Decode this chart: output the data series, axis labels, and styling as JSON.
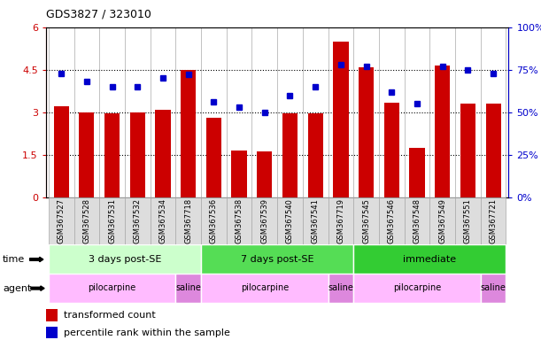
{
  "title": "GDS3827 / 323010",
  "samples": [
    "GSM367527",
    "GSM367528",
    "GSM367531",
    "GSM367532",
    "GSM367534",
    "GSM367718",
    "GSM367536",
    "GSM367538",
    "GSM367539",
    "GSM367540",
    "GSM367541",
    "GSM367719",
    "GSM367545",
    "GSM367546",
    "GSM367548",
    "GSM367549",
    "GSM367551",
    "GSM367721"
  ],
  "bar_values": [
    3.2,
    3.0,
    2.95,
    3.0,
    3.1,
    4.5,
    2.8,
    1.65,
    1.62,
    2.95,
    2.95,
    5.5,
    4.6,
    3.35,
    1.75,
    4.65,
    3.3,
    3.3
  ],
  "dot_values": [
    73,
    68,
    65,
    65,
    70,
    72,
    56,
    53,
    50,
    60,
    65,
    78,
    77,
    62,
    55,
    77,
    75,
    73
  ],
  "bar_color": "#cc0000",
  "dot_color": "#0000cc",
  "ylim_left": [
    0,
    6
  ],
  "ylim_right": [
    0,
    100
  ],
  "yticks_left": [
    0,
    1.5,
    3.0,
    4.5,
    6.0
  ],
  "ytick_labels_left": [
    "0",
    "1.5",
    "3",
    "4.5",
    "6"
  ],
  "yticks_right": [
    0,
    25,
    50,
    75,
    100
  ],
  "ytick_labels_right": [
    "0%",
    "25%",
    "50%",
    "75%",
    "100%"
  ],
  "hlines": [
    1.5,
    3.0,
    4.5
  ],
  "time_groups": [
    {
      "label": "3 days post-SE",
      "start": 0,
      "end": 5,
      "color": "#ccffcc"
    },
    {
      "label": "7 days post-SE",
      "start": 6,
      "end": 11,
      "color": "#55dd55"
    },
    {
      "label": "immediate",
      "start": 12,
      "end": 17,
      "color": "#33cc33"
    }
  ],
  "agent_groups": [
    {
      "label": "pilocarpine",
      "start": 0,
      "end": 4,
      "color": "#ffbbff"
    },
    {
      "label": "saline",
      "start": 5,
      "end": 5,
      "color": "#dd88dd"
    },
    {
      "label": "pilocarpine",
      "start": 6,
      "end": 10,
      "color": "#ffbbff"
    },
    {
      "label": "saline",
      "start": 11,
      "end": 11,
      "color": "#dd88dd"
    },
    {
      "label": "pilocarpine",
      "start": 12,
      "end": 16,
      "color": "#ffbbff"
    },
    {
      "label": "saline",
      "start": 17,
      "end": 17,
      "color": "#dd88dd"
    }
  ],
  "legend_bar_label": "transformed count",
  "legend_dot_label": "percentile rank within the sample",
  "time_label": "time",
  "agent_label": "agent",
  "background_color": "#ffffff",
  "plot_bg_color": "#ffffff",
  "bar_width": 0.6,
  "xticklabel_bg": "#dddddd",
  "xticklabel_border": "#aaaaaa"
}
